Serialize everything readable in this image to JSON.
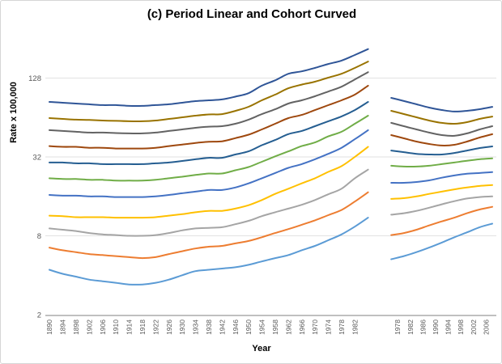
{
  "chart_data": {
    "type": "line",
    "title": "(c) Period Linear and Cohort Curved",
    "xlabel": "Year",
    "ylabel": "Rate x 100,000",
    "y_scale": "log base 4",
    "y_ticks": [
      2,
      8,
      32,
      128
    ],
    "ylim": [
      2,
      300
    ],
    "grid": "horizontal-light",
    "legend": "none",
    "colors": {
      "gridline": "#e2e2e2",
      "axis_line": "#9b9b9b",
      "tick_label": "#595959"
    },
    "panels": [
      {
        "name": "left",
        "x_tick_labels": [
          1890,
          1894,
          1898,
          1902,
          1906,
          1910,
          1914,
          1918,
          1922,
          1926,
          1930,
          1934,
          1938,
          1942,
          1946,
          1950,
          1954,
          1958,
          1962,
          1966,
          1970,
          1974,
          1978,
          1982
        ],
        "years": [
          1890,
          1894,
          1898,
          1902,
          1906,
          1910,
          1914,
          1918,
          1922,
          1926,
          1930,
          1934,
          1938,
          1942,
          1946,
          1950,
          1954,
          1958,
          1962,
          1966,
          1970,
          1974,
          1978,
          1982,
          1986
        ],
        "series": [
          {
            "name": "line-01",
            "color": "#5B9BD5",
            "values": [
              4.4,
              4.1,
              3.9,
              3.7,
              3.6,
              3.5,
              3.4,
              3.4,
              3.5,
              3.7,
              4.0,
              4.3,
              4.4,
              4.5,
              4.6,
              4.8,
              5.1,
              5.4,
              5.7,
              6.2,
              6.7,
              7.4,
              8.2,
              9.4,
              11.0
            ]
          },
          {
            "name": "line-02",
            "color": "#ED7D31",
            "values": [
              6.5,
              6.2,
              6.0,
              5.8,
              5.7,
              5.6,
              5.5,
              5.4,
              5.5,
              5.8,
              6.1,
              6.4,
              6.6,
              6.7,
              7.0,
              7.3,
              7.8,
              8.4,
              9.0,
              9.7,
              10.5,
              11.5,
              12.6,
              14.6,
              17.2
            ]
          },
          {
            "name": "line-03",
            "color": "#A5A5A5",
            "values": [
              9.1,
              8.9,
              8.7,
              8.4,
              8.2,
              8.1,
              8.0,
              8.0,
              8.1,
              8.4,
              8.8,
              9.1,
              9.2,
              9.3,
              9.8,
              10.4,
              11.3,
              12.1,
              12.9,
              13.8,
              15.0,
              16.6,
              18.3,
              22.0,
              25.6
            ]
          },
          {
            "name": "line-04",
            "color": "#FFC000",
            "values": [
              11.4,
              11.3,
              11.1,
              11.1,
              11.1,
              11.0,
              11.0,
              11.0,
              11.1,
              11.4,
              11.7,
              12.1,
              12.4,
              12.4,
              12.9,
              13.7,
              15.0,
              16.7,
              18.3,
              20.1,
              22.0,
              24.6,
              27.2,
              32.0,
              38.2
            ]
          },
          {
            "name": "line-05",
            "color": "#4472C4",
            "values": [
              16.4,
              16.2,
              16.2,
              16.0,
              16.0,
              15.8,
              15.8,
              15.8,
              16.0,
              16.4,
              16.9,
              17.4,
              17.9,
              17.9,
              18.7,
              20.1,
              22.0,
              24.1,
              26.4,
              28.2,
              30.7,
              33.8,
              37.6,
              43.7,
              51.2
            ]
          },
          {
            "name": "line-06",
            "color": "#70AD47",
            "values": [
              22.0,
              21.7,
              21.7,
              21.4,
              21.4,
              21.1,
              21.1,
              21.1,
              21.4,
              22.0,
              22.6,
              23.3,
              23.9,
              23.9,
              25.3,
              26.8,
              29.4,
              32.3,
              35.3,
              38.7,
              41.3,
              45.9,
              49.8,
              57.3,
              66.1
            ]
          },
          {
            "name": "line-07",
            "color": "#255E91",
            "values": [
              29.0,
              29.0,
              28.6,
              28.6,
              28.2,
              28.2,
              28.2,
              28.2,
              28.6,
              29.0,
              29.8,
              30.7,
              31.5,
              31.5,
              33.4,
              35.3,
              39.3,
              43.1,
              47.8,
              50.5,
              54.9,
              59.9,
              65.2,
              72.9,
              84.2
            ]
          },
          {
            "name": "line-08",
            "color": "#9E480E",
            "values": [
              38.7,
              38.2,
              38.2,
              37.6,
              37.6,
              37.1,
              37.1,
              37.1,
              37.6,
              38.7,
              39.8,
              40.9,
              41.8,
              42.1,
              44.5,
              47.3,
              51.9,
              57.3,
              63.3,
              66.9,
              72.9,
              79.5,
              86.6,
              95.7,
              112
            ]
          },
          {
            "name": "line-09",
            "color": "#636363",
            "values": [
              51.2,
              50.5,
              49.8,
              49.1,
              49.1,
              48.7,
              48.4,
              48.4,
              49.1,
              50.5,
              51.9,
              53.4,
              54.5,
              54.9,
              57.3,
              61.6,
              67.9,
              73.9,
              81.8,
              86.6,
              93.0,
              101,
              110,
              125,
              142
            ]
          },
          {
            "name": "line-10",
            "color": "#997300",
            "values": [
              63.3,
              62.4,
              61.6,
              61.3,
              60.7,
              60.3,
              59.9,
              59.9,
              60.7,
              62.4,
              64.2,
              66.1,
              67.5,
              67.9,
              71.9,
              77.3,
              86.6,
              95.7,
              107,
              114,
              120,
              129,
              138,
              153,
              171
            ]
          },
          {
            "name": "line-11",
            "color": "#2F5597",
            "values": [
              84.2,
              83.0,
              81.8,
              80.7,
              79.6,
              79.6,
              78.5,
              78.5,
              79.6,
              80.7,
              83.0,
              85.4,
              86.6,
              87.9,
              92.3,
              98.1,
              112,
              123,
              138,
              144,
              153,
              164,
              174,
              192,
              213
            ]
          }
        ]
      },
      {
        "name": "right",
        "x_tick_labels": [
          1978,
          1982,
          1986,
          1990,
          1994,
          1998,
          2002,
          2006
        ],
        "years": [
          1976,
          1980,
          1984,
          1988,
          1992,
          1996,
          2000,
          2004,
          2008
        ],
        "series": [
          {
            "name": "line-01",
            "color": "#5B9BD5",
            "values": [
              5.3,
              5.6,
              6.0,
              6.5,
              7.1,
              7.8,
              8.5,
              9.3,
              9.9
            ]
          },
          {
            "name": "line-02",
            "color": "#ED7D31",
            "values": [
              8.1,
              8.4,
              8.9,
              9.6,
              10.3,
              11.0,
              11.9,
              12.7,
              13.3
            ]
          },
          {
            "name": "line-03",
            "color": "#A5A5A5",
            "values": [
              11.6,
              11.9,
              12.4,
              13.1,
              13.9,
              14.7,
              15.4,
              15.8,
              16.0
            ]
          },
          {
            "name": "line-04",
            "color": "#FFC000",
            "values": [
              15.3,
              15.5,
              16.0,
              16.7,
              17.4,
              18.1,
              18.7,
              19.2,
              19.5
            ]
          },
          {
            "name": "line-05",
            "color": "#4472C4",
            "values": [
              20.3,
              20.3,
              20.6,
              21.2,
              22.2,
              23.1,
              23.8,
              24.1,
              24.5
            ]
          },
          {
            "name": "line-06",
            "color": "#70AD47",
            "values": [
              27.4,
              27.0,
              27.0,
              27.4,
              28.2,
              29.0,
              29.9,
              30.7,
              31.2
            ]
          },
          {
            "name": "line-07",
            "color": "#255E91",
            "values": [
              35.8,
              34.8,
              33.8,
              33.4,
              33.4,
              34.3,
              35.8,
              37.4,
              38.5
            ]
          },
          {
            "name": "line-08",
            "color": "#9E480E",
            "values": [
              47.0,
              44.4,
              41.9,
              40.2,
              39.1,
              39.6,
              41.9,
              45.0,
              47.7
            ]
          },
          {
            "name": "line-09",
            "color": "#636363",
            "values": [
              58.2,
              54.9,
              51.9,
              49.1,
              47.0,
              46.4,
              48.4,
              51.9,
              54.9
            ]
          },
          {
            "name": "line-10",
            "color": "#997300",
            "values": [
              72.0,
              68.0,
              64.2,
              60.7,
              58.2,
              57.3,
              59.0,
              62.4,
              65.1
            ]
          },
          {
            "name": "line-11",
            "color": "#2F5597",
            "values": [
              90.4,
              85.5,
              80.7,
              76.2,
              73.0,
              71.0,
              72.0,
              74.0,
              77.2
            ]
          }
        ]
      }
    ]
  }
}
